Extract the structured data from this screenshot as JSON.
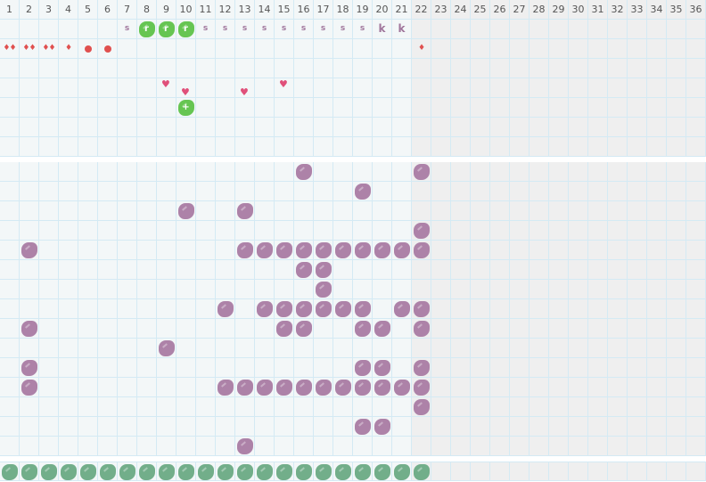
{
  "columns": [
    "1",
    "2",
    "3",
    "4",
    "5",
    "6",
    "7",
    "8",
    "9",
    "10",
    "11",
    "12",
    "13",
    "14",
    "15",
    "16",
    "17",
    "18",
    "19",
    "20",
    "21",
    "22",
    "23",
    "24",
    "25",
    "26",
    "27",
    "28",
    "29",
    "30",
    "31",
    "32",
    "33",
    "34",
    "35",
    "36"
  ],
  "active_columns": 21,
  "colors": {
    "purple": "#ad82a8",
    "green_bright": "#66c552",
    "green_muted": "#72ae8a",
    "red": "#e0504f",
    "pink": "#e0507a",
    "grid_line": "#d4eaf4",
    "cell_bg": "#f3f7f8",
    "inactive_bg": "#efefef"
  },
  "top_rows": 7,
  "top_items": [
    {
      "row": 1,
      "col": 7,
      "type": "text",
      "text": "s"
    },
    {
      "row": 1,
      "col": 8,
      "type": "green",
      "text": "r"
    },
    {
      "row": 1,
      "col": 9,
      "type": "green",
      "text": "r"
    },
    {
      "row": 1,
      "col": 10,
      "type": "green",
      "text": "r"
    },
    {
      "row": 1,
      "col": 11,
      "type": "text",
      "text": "s"
    },
    {
      "row": 1,
      "col": 12,
      "type": "text",
      "text": "s"
    },
    {
      "row": 1,
      "col": 13,
      "type": "text",
      "text": "s"
    },
    {
      "row": 1,
      "col": 14,
      "type": "text",
      "text": "s"
    },
    {
      "row": 1,
      "col": 15,
      "type": "text",
      "text": "s"
    },
    {
      "row": 1,
      "col": 16,
      "type": "text",
      "text": "s"
    },
    {
      "row": 1,
      "col": 17,
      "type": "text",
      "text": "s"
    },
    {
      "row": 1,
      "col": 18,
      "type": "text",
      "text": "s"
    },
    {
      "row": 1,
      "col": 19,
      "type": "text",
      "text": "s"
    },
    {
      "row": 1,
      "col": 20,
      "type": "textk",
      "text": "k"
    },
    {
      "row": 1,
      "col": 21,
      "type": "textk",
      "text": "k"
    },
    {
      "row": 2,
      "col": 1,
      "type": "drop",
      "count": 2
    },
    {
      "row": 2,
      "col": 2,
      "type": "drop",
      "count": 2
    },
    {
      "row": 2,
      "col": 3,
      "type": "drop",
      "count": 2
    },
    {
      "row": 2,
      "col": 4,
      "type": "drop",
      "count": 1
    },
    {
      "row": 2,
      "col": 5,
      "type": "dot"
    },
    {
      "row": 2,
      "col": 6,
      "type": "dot"
    },
    {
      "row": 2,
      "col": 22,
      "type": "drop",
      "count": 1
    },
    {
      "row": 4,
      "col": 9,
      "type": "heart",
      "pos": "high"
    },
    {
      "row": 4,
      "col": 10,
      "type": "heart",
      "pos": "low"
    },
    {
      "row": 4,
      "col": 13,
      "type": "heart",
      "pos": "low"
    },
    {
      "row": 4,
      "col": 15,
      "type": "heart",
      "pos": "high"
    },
    {
      "row": 5,
      "col": 10,
      "type": "green",
      "text": "+"
    }
  ],
  "bottom_rows": 15,
  "bottom_cells": [
    [
      16,
      22
    ],
    [
      19
    ],
    [
      10,
      13
    ],
    [
      22
    ],
    [
      2,
      13,
      14,
      15,
      16,
      17,
      18,
      19,
      20,
      21,
      22
    ],
    [
      16,
      17
    ],
    [
      17
    ],
    [
      12,
      14,
      15,
      16,
      17,
      18,
      19,
      21,
      22
    ],
    [
      2,
      15,
      16,
      19,
      20,
      22
    ],
    [
      9
    ],
    [
      2,
      19,
      20,
      22
    ],
    [
      2,
      12,
      13,
      14,
      15,
      16,
      17,
      18,
      19,
      20,
      21,
      22
    ],
    [
      22
    ],
    [
      19,
      20
    ],
    [
      13
    ]
  ],
  "footer_cells": [
    1,
    2,
    3,
    4,
    5,
    6,
    7,
    8,
    9,
    10,
    11,
    12,
    13,
    14,
    15,
    16,
    17,
    18,
    19,
    20,
    21,
    22
  ]
}
